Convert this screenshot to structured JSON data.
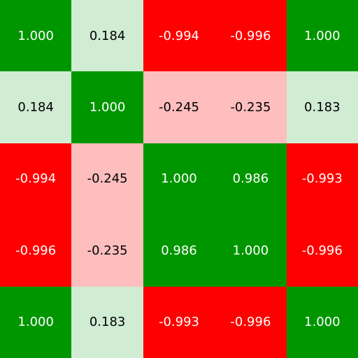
{
  "chart_data": {
    "type": "heatmap",
    "title": "",
    "xlabel": "",
    "ylabel": "",
    "values": [
      [
        1.0,
        0.184,
        -0.994,
        -0.996,
        1.0
      ],
      [
        0.184,
        1.0,
        -0.245,
        -0.235,
        0.183
      ],
      [
        -0.994,
        -0.245,
        1.0,
        0.986,
        -0.993
      ],
      [
        -0.996,
        -0.235,
        0.986,
        1.0,
        -0.996
      ],
      [
        1.0,
        0.183,
        -0.993,
        -0.996,
        1.0
      ]
    ],
    "labels": [
      [
        "1.000",
        "0.184",
        "-0.994",
        "-0.996",
        "1.000"
      ],
      [
        "0.184",
        "1.000",
        "-0.245",
        "-0.235",
        "0.183"
      ],
      [
        "-0.994",
        "-0.245",
        "1.000",
        "0.986",
        "-0.993"
      ],
      [
        "-0.996",
        "-0.235",
        "0.986",
        "1.000",
        "-0.996"
      ],
      [
        "1.000",
        "0.183",
        "-0.993",
        "-0.996",
        "1.000"
      ]
    ],
    "colors": {
      "strong_positive": "#009600",
      "weak_positive": "#d0ecd3",
      "strong_negative": "#ff0000",
      "weak_negative": "#ffbebe",
      "light_text": "#ffffff",
      "dark_text": "#000000"
    },
    "strong_threshold": 0.5
  }
}
